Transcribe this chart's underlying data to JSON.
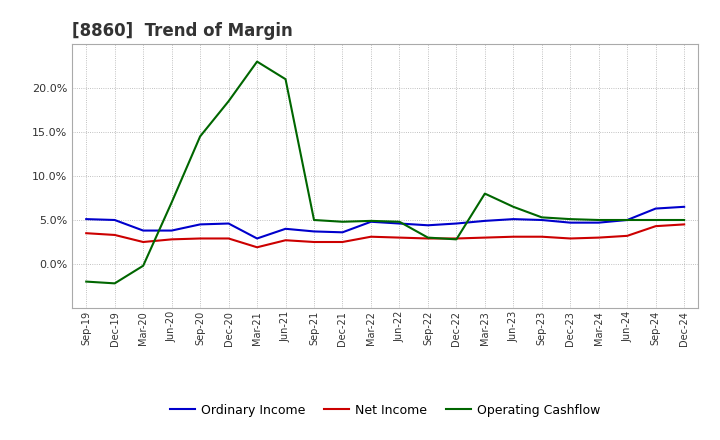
{
  "title": "[8860]  Trend of Margin",
  "x_labels": [
    "Sep-19",
    "Dec-19",
    "Mar-20",
    "Jun-20",
    "Sep-20",
    "Dec-20",
    "Mar-21",
    "Jun-21",
    "Sep-21",
    "Dec-21",
    "Mar-22",
    "Jun-22",
    "Sep-22",
    "Dec-22",
    "Mar-23",
    "Jun-23",
    "Sep-23",
    "Dec-23",
    "Mar-24",
    "Jun-24",
    "Sep-24",
    "Dec-24"
  ],
  "ordinary_income": [
    5.1,
    5.0,
    3.8,
    3.8,
    4.5,
    4.6,
    2.9,
    4.0,
    3.7,
    3.6,
    4.8,
    4.6,
    4.4,
    4.6,
    4.9,
    5.1,
    5.0,
    4.7,
    4.7,
    5.0,
    6.3,
    6.5
  ],
  "net_income": [
    3.5,
    3.3,
    2.5,
    2.8,
    2.9,
    2.9,
    1.9,
    2.7,
    2.5,
    2.5,
    3.1,
    3.0,
    2.9,
    2.9,
    3.0,
    3.1,
    3.1,
    2.9,
    3.0,
    3.2,
    4.3,
    4.5
  ],
  "operating_cashflow": [
    -2.0,
    -2.2,
    -0.2,
    7.0,
    14.5,
    18.5,
    23.0,
    21.0,
    5.0,
    4.8,
    4.9,
    4.8,
    3.0,
    2.8,
    8.0,
    6.5,
    5.3,
    5.1,
    5.0,
    5.0,
    5.0,
    5.0
  ],
  "ylim": [
    -5.0,
    25.0
  ],
  "yticks": [
    0.0,
    5.0,
    10.0,
    15.0,
    20.0
  ],
  "color_ordinary": "#0000cc",
  "color_net": "#cc0000",
  "color_cashflow": "#006600",
  "bg_color": "#ffffff",
  "grid_color": "#999999",
  "title_fontsize": 12,
  "legend_fontsize": 9
}
